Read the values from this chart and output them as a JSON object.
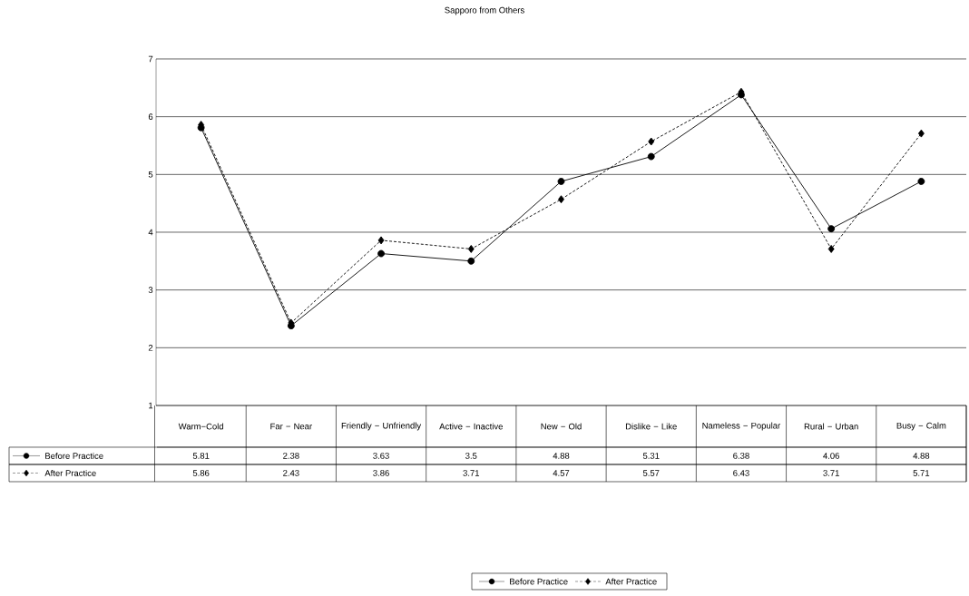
{
  "chart_data": {
    "type": "line",
    "title": "Sapporo from Others",
    "categories": [
      "Warm−Cold",
      "Far − Near",
      "Friendly − Unfriendly",
      "Active − Inactive",
      "New − Old",
      "Dislike − Like",
      "Nameless − Popular",
      "Rural − Urban",
      "Busy − Calm"
    ],
    "series": [
      {
        "name": "Before Practice",
        "color": "#000000",
        "marker": "circle",
        "line_style": "solid",
        "values": [
          5.81,
          2.38,
          3.63,
          3.5,
          4.88,
          5.31,
          6.38,
          4.06,
          4.88
        ]
      },
      {
        "name": "After Practice",
        "color": "#000000",
        "marker": "diamond",
        "line_style": "dashed",
        "values": [
          5.86,
          2.43,
          3.86,
          3.71,
          4.57,
          5.57,
          6.43,
          3.71,
          5.71
        ]
      }
    ],
    "ylim": [
      1,
      7
    ],
    "yticks": [
      1,
      2,
      3,
      4,
      5,
      6,
      7
    ],
    "grid": "y",
    "legend": "bottom",
    "data_labels": true
  }
}
